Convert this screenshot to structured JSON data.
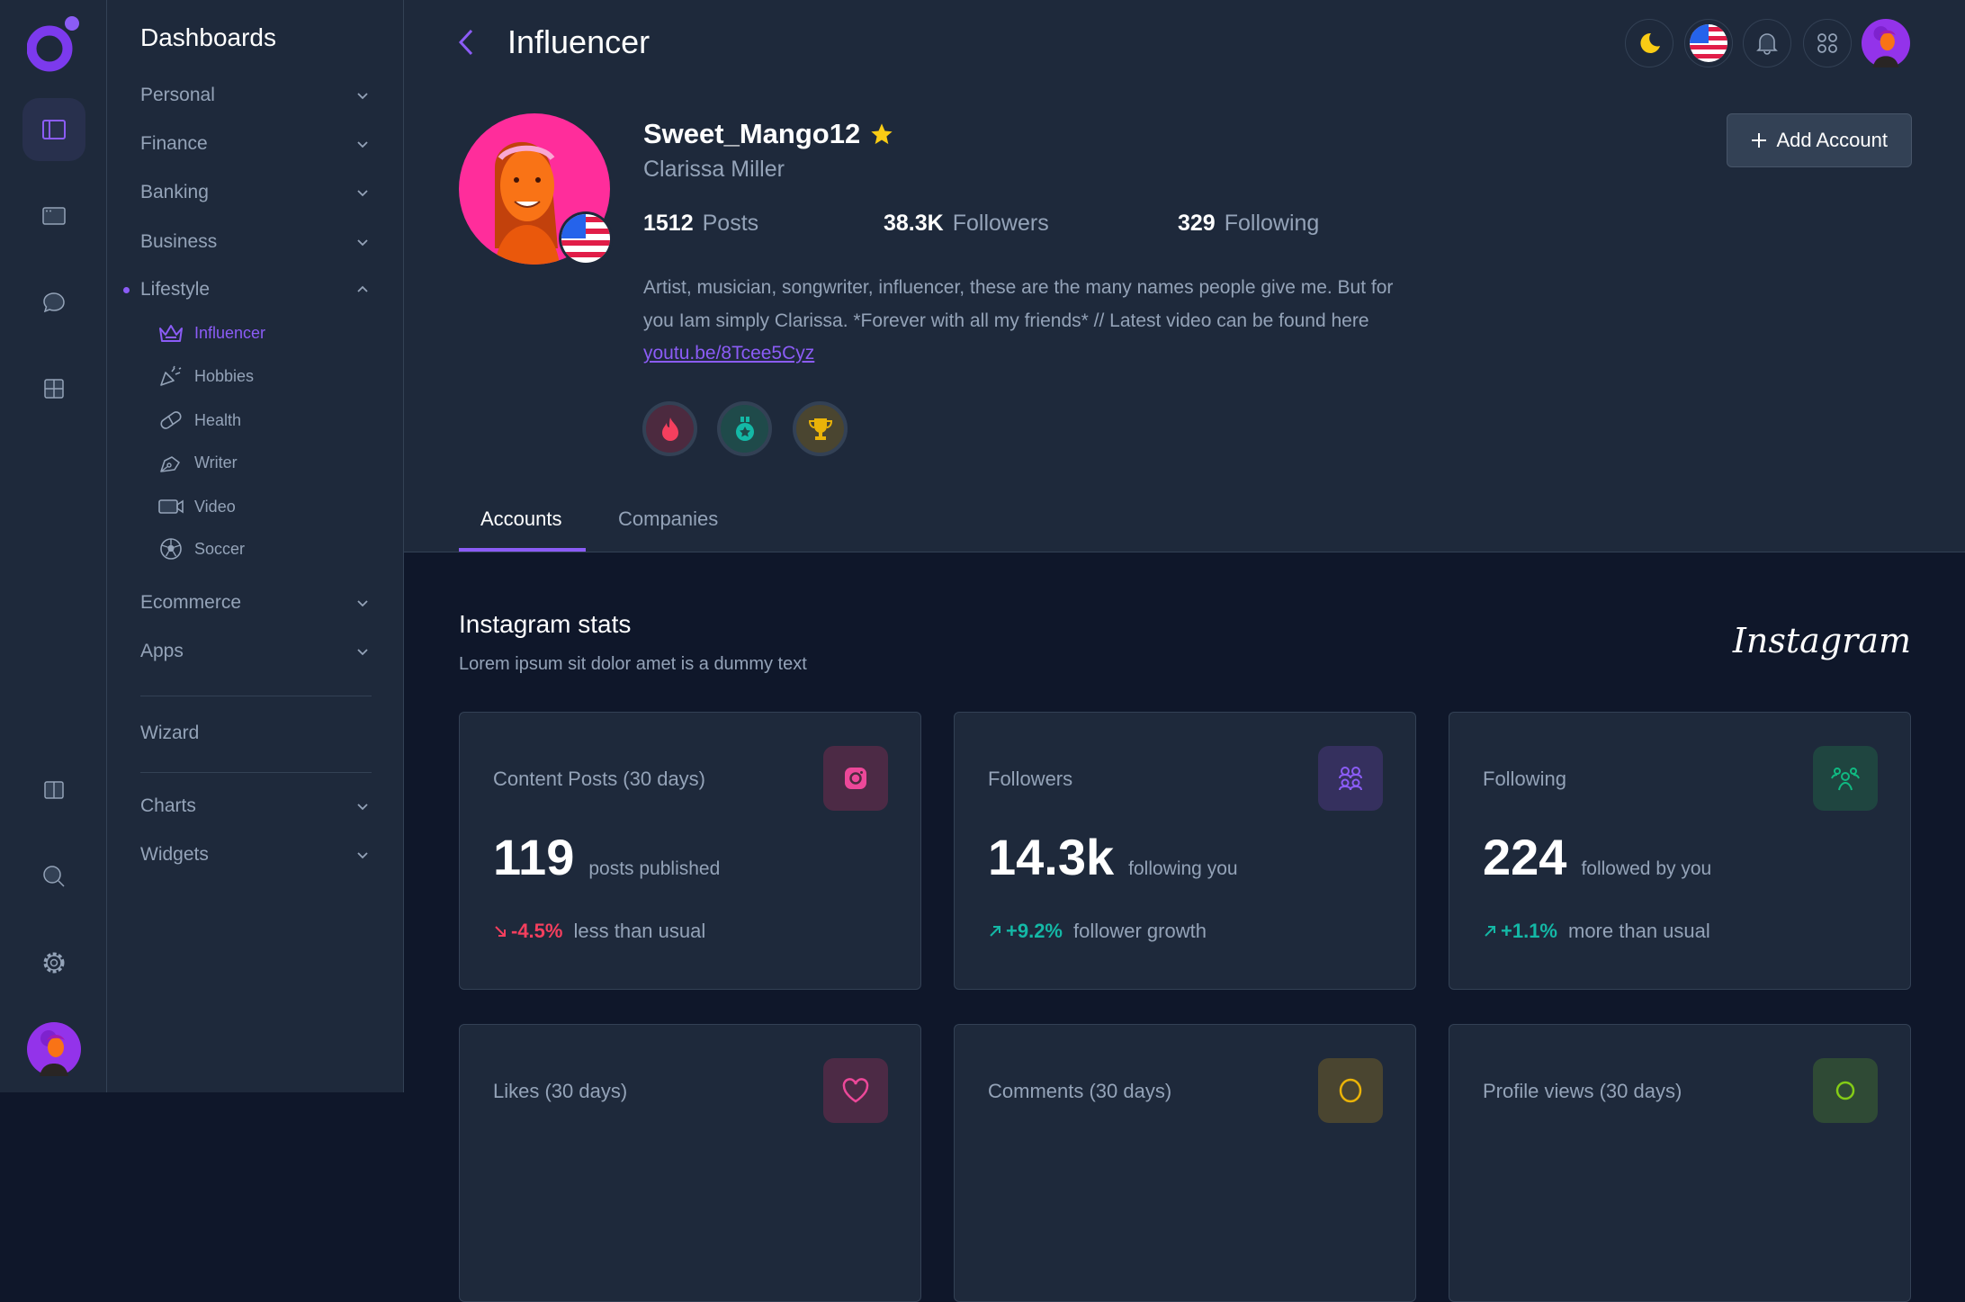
{
  "colors": {
    "accent": "#8b5cf6",
    "negative": "#f43f5e",
    "positive": "#14b8a6",
    "star": "#facc15"
  },
  "rail": {
    "icons": [
      "layout-sidebar-icon",
      "browser-window-icon",
      "chat-icon",
      "grid-icon",
      "columns-icon",
      "search-icon",
      "gear-icon"
    ]
  },
  "menu": {
    "title": "Dashboards",
    "groups": [
      {
        "label": "Personal"
      },
      {
        "label": "Finance"
      },
      {
        "label": "Banking"
      },
      {
        "label": "Business"
      },
      {
        "label": "Lifestyle"
      }
    ],
    "lifestyle_items": [
      {
        "label": "Influencer",
        "icon": "crown-icon"
      },
      {
        "label": "Hobbies",
        "icon": "party-popper-icon"
      },
      {
        "label": "Health",
        "icon": "pill-icon"
      },
      {
        "label": "Writer",
        "icon": "pen-icon"
      },
      {
        "label": "Video",
        "icon": "video-camera-icon"
      },
      {
        "label": "Soccer",
        "icon": "soccer-ball-icon"
      }
    ],
    "more_groups": [
      {
        "label": "Ecommerce"
      },
      {
        "label": "Apps"
      }
    ],
    "wizard": "Wizard",
    "bottom_groups": [
      {
        "label": "Charts"
      },
      {
        "label": "Widgets"
      }
    ]
  },
  "header": {
    "title": "Influencer"
  },
  "profile": {
    "username": "Sweet_Mango12",
    "name": "Clarissa Miller",
    "posts": {
      "value": "1512",
      "label": "Posts"
    },
    "followers": {
      "value": "38.3K",
      "label": "Followers"
    },
    "following": {
      "value": "329",
      "label": "Following"
    },
    "bio": "Artist, musician, songwriter, influencer, these are the many names people give me. But for you Iam simply Clarissa. *Forever with all my friends* // Latest video can be found here ",
    "link": "youtu.be/8Tcee5Cyz",
    "add_account": "Add Account"
  },
  "tabs": [
    {
      "label": "Accounts",
      "active": true
    },
    {
      "label": "Companies",
      "active": false
    }
  ],
  "section": {
    "title": "Instagram stats",
    "subtitle": "Lorem ipsum sit dolor amet is a dummy text",
    "brand": "Instagram"
  },
  "cards": [
    {
      "title": "Content Posts (30 days)",
      "value": "119",
      "unit": "posts published",
      "change": "-4.5%",
      "change_text": "less than usual",
      "trend": "down",
      "icon": "instagram-icon",
      "color": "#ec4899"
    },
    {
      "title": "Followers",
      "value": "14.3k",
      "unit": "following you",
      "change": "+9.2%",
      "change_text": "follower growth",
      "trend": "up",
      "icon": "users-icon",
      "color": "#8b5cf6"
    },
    {
      "title": "Following",
      "value": "224",
      "unit": "followed by you",
      "change": "+1.1%",
      "change_text": "more than usual",
      "trend": "up",
      "icon": "user-group-icon",
      "color": "#10b981"
    },
    {
      "title": "Likes (30 days)",
      "icon": "heart-icon",
      "color": "#ec4899"
    },
    {
      "title": "Comments (30 days)",
      "icon": "comment-icon",
      "color": "#eab308"
    },
    {
      "title": "Profile views (30 days)",
      "icon": "eye-icon",
      "color": "#84cc16"
    }
  ]
}
